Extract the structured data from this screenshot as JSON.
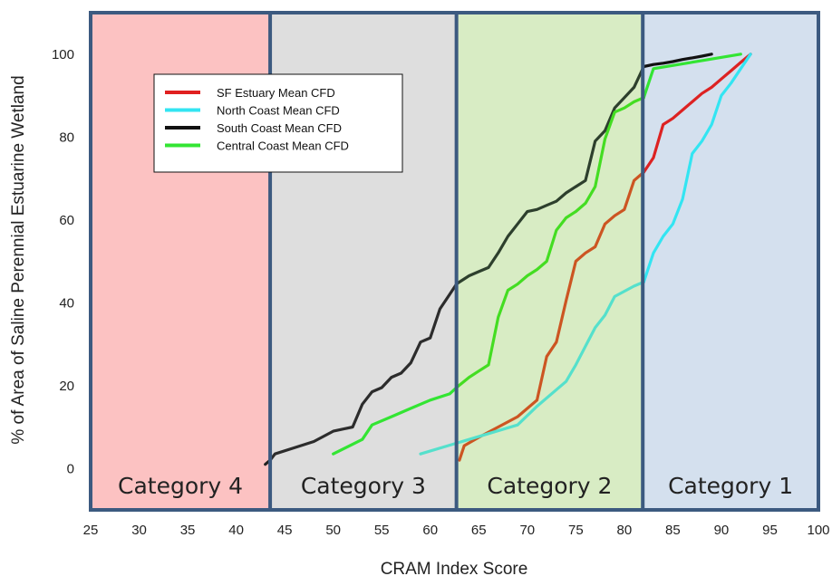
{
  "chart_data": {
    "type": "line",
    "title": "",
    "xlabel": "CRAM Index Score",
    "ylabel": "% of Area of Saline Perennial Estuarine Wetland",
    "xlim": [
      25,
      100
    ],
    "ylim": [
      -10,
      110
    ],
    "x_ticks": [
      25,
      30,
      35,
      40,
      45,
      50,
      55,
      60,
      65,
      70,
      75,
      80,
      85,
      90,
      95,
      100
    ],
    "y_ticks": [
      0,
      20,
      40,
      60,
      80,
      100
    ],
    "grid": false,
    "legend_position": "top-left",
    "regions": [
      {
        "label": "Category 4",
        "x_from": 25,
        "x_to": 43.5,
        "color": "#fcc2c2"
      },
      {
        "label": "Category 3",
        "x_from": 43.5,
        "x_to": 62.7,
        "color": "#dedede"
      },
      {
        "label": "Category 2",
        "x_from": 62.7,
        "x_to": 81.9,
        "color": "#d8ecc4"
      },
      {
        "label": "Category 1",
        "x_from": 81.9,
        "x_to": 100,
        "color": "#d4e0ee"
      }
    ],
    "series": [
      {
        "name": "SF Estuary Mean CFD",
        "legend_color": "#e02020",
        "segments": [
          {
            "color": "#cc5522",
            "x": [
              63,
              63.5,
              65,
              67,
              69,
              71,
              72,
              73,
              74,
              75,
              76,
              77,
              78,
              79,
              80,
              81,
              82
            ],
            "y": [
              2,
              5.5,
              7.5,
              10,
              12.5,
              16.5,
              27,
              30.5,
              40.5,
              50,
              52,
              53.5,
              59,
              61,
              62.5,
              69.5,
              71.5
            ]
          },
          {
            "color": "#dd2222",
            "x": [
              82,
              83,
              84,
              85,
              86,
              87,
              88,
              89,
              90,
              91,
              92,
              93
            ],
            "y": [
              71.5,
              75,
              83,
              84.5,
              86.5,
              88.5,
              90.5,
              92,
              94,
              96,
              98,
              100
            ]
          }
        ]
      },
      {
        "name": "North Coast Mean CFD",
        "legend_color": "#33e5f2",
        "segments": [
          {
            "color": "#55e0cc",
            "x": [
              59,
              64,
              69,
              71,
              73,
              74,
              75,
              76,
              77,
              78,
              79,
              81,
              82
            ],
            "y": [
              3.5,
              7,
              10.5,
              15,
              19,
              21,
              25,
              29.5,
              34,
              37,
              41.5,
              44,
              45
            ]
          },
          {
            "color": "#33e5f2",
            "x": [
              82,
              83,
              84,
              85,
              86,
              87,
              88,
              89,
              90,
              91,
              92,
              93
            ],
            "y": [
              45,
              52,
              56,
              59,
              65,
              76,
              79,
              83,
              90,
              93,
              96.5,
              100
            ]
          }
        ]
      },
      {
        "name": "South Coast Mean CFD",
        "legend_color": "#111111",
        "segments": [
          {
            "color": "#222222",
            "x": [
              43,
              43.5
            ],
            "y": [
              1,
              2
            ]
          },
          {
            "color": "#2c2c2c",
            "x": [
              43.5,
              44,
              46,
              48,
              50,
              52,
              53,
              54,
              55,
              56,
              57,
              58,
              59,
              60,
              61,
              62,
              62.7
            ],
            "y": [
              2,
              3.5,
              5,
              6.5,
              9,
              10,
              15.5,
              18.5,
              19.5,
              22,
              23,
              25.5,
              30.5,
              31.5,
              38.5,
              42,
              44.5
            ]
          },
          {
            "color": "#2d3f2d",
            "x": [
              62.7,
              63,
              64,
              65,
              66,
              67,
              68,
              69,
              70,
              71,
              72,
              73,
              74,
              75,
              76,
              77,
              78,
              79,
              80,
              81,
              82
            ],
            "y": [
              44.5,
              45,
              46.5,
              47.5,
              48.5,
              52,
              56,
              59,
              62,
              62.5,
              63.5,
              64.5,
              66.5,
              68,
              69.5,
              79,
              81.5,
              87,
              89.5,
              92,
              97
            ]
          },
          {
            "color": "#111111",
            "x": [
              82,
              83,
              84,
              85,
              86,
              87,
              88,
              89
            ],
            "y": [
              97,
              97.5,
              97.8,
              98.2,
              98.7,
              99.1,
              99.5,
              100
            ]
          }
        ]
      },
      {
        "name": "Central Coast Mean CFD",
        "legend_color": "#33e533",
        "segments": [
          {
            "color": "#33e533",
            "x": [
              50,
              53,
              54,
              56,
              58,
              60,
              62,
              62.7
            ],
            "y": [
              3.5,
              7,
              10.5,
              12.5,
              14.5,
              16.5,
              18,
              19.5
            ]
          },
          {
            "color": "#44dd22",
            "x": [
              62.7,
              64,
              65,
              66,
              67,
              68,
              69,
              70,
              71,
              72,
              73,
              74,
              75,
              76,
              77,
              78,
              79,
              80,
              81,
              82
            ],
            "y": [
              19.5,
              22,
              23.5,
              25,
              36.5,
              43,
              44.5,
              46.5,
              48,
              50,
              57.5,
              60.5,
              62,
              64,
              68,
              79.5,
              86,
              87,
              88.5,
              89.5
            ]
          },
          {
            "color": "#33e533",
            "x": [
              82,
              83,
              92
            ],
            "y": [
              89.5,
              96.5,
              100
            ]
          }
        ]
      }
    ]
  }
}
